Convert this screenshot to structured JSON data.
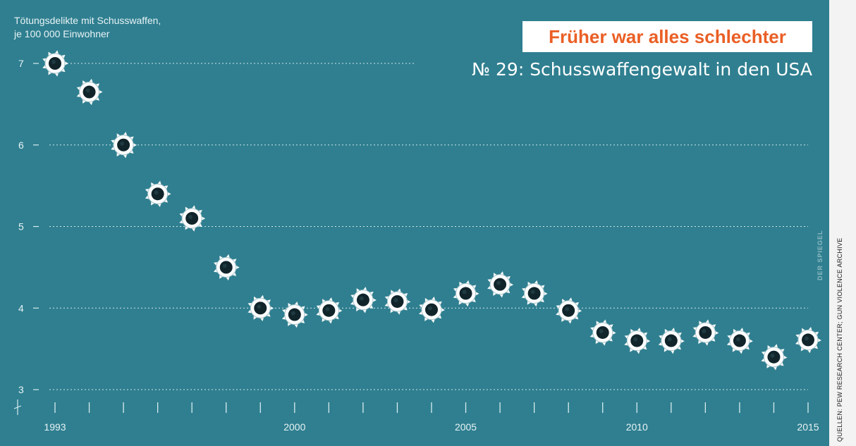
{
  "header": {
    "ylabel_line1": "Tötungsdelikte mit Schusswaffen,",
    "ylabel_line2": "je 100 000 Einwohner",
    "badge": "Früher war alles schlechter",
    "subtitle": "№ 29: Schusswaffengewalt in den USA"
  },
  "side": {
    "source": "QUELLEN: PEW RESEARCH CENTER; GUN VIOLENCE ARCHIVE",
    "brand": "DER SPIEGEL"
  },
  "colors": {
    "background": "#2f7f90",
    "badge_text": "#ea5f25",
    "marker_ring": "#ffffff",
    "marker_hole": "#10242a"
  },
  "chart_data": {
    "type": "scatter",
    "marker": "bullet-hole-icon",
    "title": "Früher war alles schlechter",
    "ylabel": "Tötungsdelikte mit Schusswaffen, je 100 000 Einwohner",
    "xlabel": "",
    "ylim": [
      3,
      7
    ],
    "yticks": [
      3,
      4,
      5,
      6,
      7
    ],
    "xticks_labeled": [
      1993,
      2000,
      2005,
      2010,
      2015
    ],
    "grid": true,
    "x": [
      1993,
      1994,
      1995,
      1996,
      1997,
      1998,
      1999,
      2000,
      2001,
      2002,
      2003,
      2004,
      2005,
      2006,
      2007,
      2008,
      2009,
      2010,
      2011,
      2012,
      2013,
      2014,
      2015
    ],
    "y": [
      7.0,
      6.65,
      6.0,
      5.4,
      5.1,
      4.5,
      4.0,
      3.92,
      3.97,
      4.1,
      4.08,
      3.98,
      4.18,
      4.29,
      4.18,
      3.97,
      3.7,
      3.6,
      3.6,
      3.7,
      3.6,
      3.4,
      3.61
    ]
  }
}
